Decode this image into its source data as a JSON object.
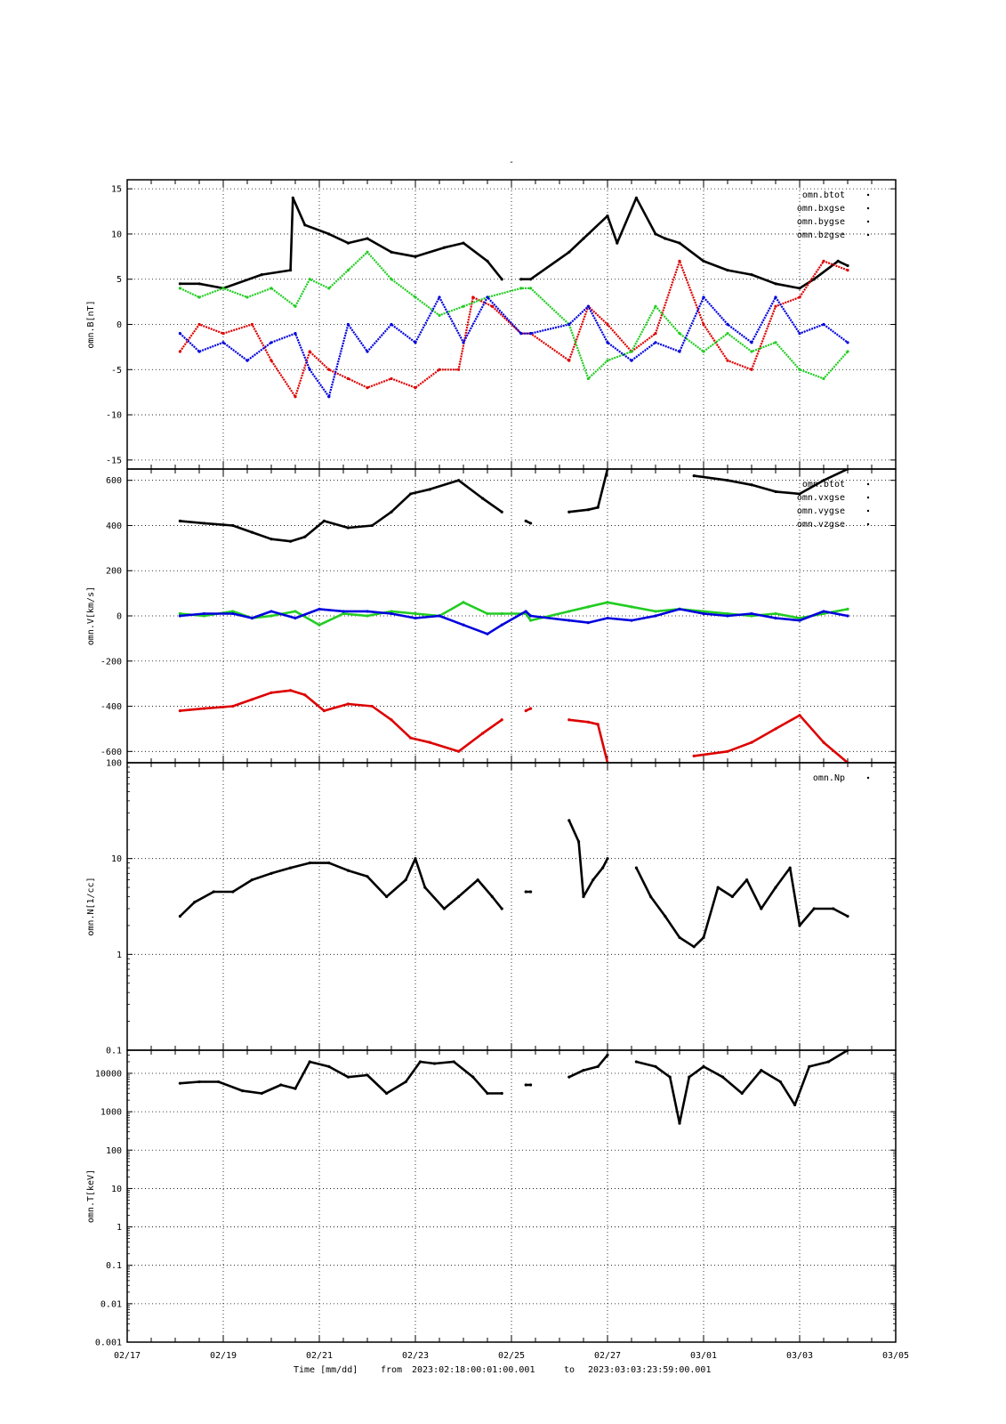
{
  "title": "-",
  "footer": {
    "time_label": "Time [mm/dd]",
    "from_label": "from",
    "from_value": "2023:02:18:00:01:00.001",
    "to_label": "to",
    "to_value": "2023:03:03:23:59:00.001"
  },
  "x_axis": {
    "range": [
      "02/17",
      "03/05"
    ],
    "tick_labels": [
      "02/17",
      "02/19",
      "02/21",
      "02/23",
      "02/25",
      "02/27",
      "03/01",
      "03/03",
      "03/05"
    ]
  },
  "colors": {
    "black": "#000000",
    "red": "#dd0000",
    "green": "#22cc22",
    "blue": "#0000dd"
  },
  "chart_data": [
    {
      "type": "scatter",
      "ylabel": "omn.B[nT]",
      "ylim": [
        -16,
        16
      ],
      "y_ticks": [
        15,
        10,
        5,
        0,
        -5,
        -10,
        -15
      ],
      "x_units": "days since 02/17",
      "legend": [
        "omn.btot",
        "omn.bxgse",
        "omn.bygse",
        "omn.bzgse"
      ],
      "series": [
        {
          "name": "omn.btot",
          "color": "#000000",
          "style": "line",
          "x": [
            1.1,
            1.5,
            2.0,
            2.8,
            3.4,
            3.45,
            3.7,
            4.2,
            4.6,
            5.0,
            5.5,
            6.0,
            6.6,
            7.0,
            7.5,
            7.8
          ],
          "y": [
            4.5,
            4.5,
            4.0,
            5.5,
            6.0,
            14.0,
            11.0,
            10.0,
            9.0,
            9.5,
            8.0,
            7.5,
            8.5,
            9.0,
            7.0,
            5.0
          ]
        },
        {
          "name": "omn.btot-b",
          "color": "#000000",
          "style": "line",
          "x": [
            8.2,
            8.4,
            9.2,
            9.5,
            10.0,
            10.2,
            10.6,
            11.0,
            11.2,
            11.5,
            12.0,
            12.5,
            13.0,
            13.5,
            14.0,
            14.3,
            14.8,
            15.0
          ],
          "y": [
            5.0,
            5.0,
            8.0,
            9.5,
            12.0,
            9.0,
            14.0,
            10.0,
            9.5,
            9.0,
            7.0,
            6.0,
            5.5,
            4.5,
            4.0,
            5.0,
            7.0,
            6.5
          ]
        },
        {
          "name": "omn.bxgse",
          "color": "#dd0000",
          "style": "scatter",
          "x": [
            1.1,
            1.5,
            2.0,
            2.6,
            3.0,
            3.5,
            3.8,
            4.2,
            4.6,
            5.0,
            5.5,
            6.0,
            6.5,
            6.9,
            7.2,
            7.6,
            8.2,
            8.4,
            9.2,
            9.6,
            10.0,
            10.5,
            11.0,
            11.5,
            12.0,
            12.5,
            13.0,
            13.5,
            14.0,
            14.5,
            15.0
          ],
          "y": [
            -3,
            0,
            -1,
            0,
            -4,
            -8,
            -3,
            -5,
            -6,
            -7,
            -6,
            -7,
            -5,
            -5,
            3,
            2,
            -1,
            -1,
            -4,
            2,
            0,
            -3,
            -1,
            7,
            0,
            -4,
            -5,
            2,
            3,
            7,
            6
          ]
        },
        {
          "name": "omn.bygse",
          "color": "#22cc22",
          "style": "scatter",
          "x": [
            1.1,
            1.5,
            2.0,
            2.5,
            3.0,
            3.5,
            3.8,
            4.2,
            4.6,
            5.0,
            5.5,
            6.0,
            6.5,
            7.0,
            7.5,
            8.2,
            8.4,
            9.2,
            9.6,
            10.0,
            10.5,
            11.0,
            11.5,
            12.0,
            12.5,
            13.0,
            13.5,
            14.0,
            14.5,
            15.0
          ],
          "y": [
            4,
            3,
            4,
            3,
            4,
            2,
            5,
            4,
            6,
            8,
            5,
            3,
            1,
            2,
            3,
            4,
            4,
            0,
            -6,
            -4,
            -3,
            2,
            -1,
            -3,
            -1,
            -3,
            -2,
            -5,
            -6,
            -3
          ]
        },
        {
          "name": "omn.bzgse",
          "color": "#0000dd",
          "style": "scatter",
          "x": [
            1.1,
            1.5,
            2.0,
            2.5,
            3.0,
            3.5,
            3.8,
            4.2,
            4.6,
            5.0,
            5.5,
            6.0,
            6.5,
            7.0,
            7.5,
            8.2,
            8.4,
            9.2,
            9.6,
            10.0,
            10.5,
            11.0,
            11.5,
            12.0,
            12.5,
            13.0,
            13.5,
            14.0,
            14.5,
            15.0
          ],
          "y": [
            -1,
            -3,
            -2,
            -4,
            -2,
            -1,
            -5,
            -8,
            0,
            -3,
            0,
            -2,
            3,
            -2,
            3,
            -1,
            -1,
            0,
            2,
            -2,
            -4,
            -2,
            -3,
            3,
            0,
            -2,
            3,
            -1,
            0,
            -2
          ]
        }
      ]
    },
    {
      "type": "scatter",
      "ylabel": "omn.V[km/s]",
      "ylim": [
        -650,
        650
      ],
      "y_ticks": [
        600,
        400,
        200,
        0,
        -200,
        -400,
        -600
      ],
      "x_units": "days since 02/17",
      "legend": [
        "omn.btot",
        "omn.vxgse",
        "omn.vygse",
        "omn.vzgse"
      ],
      "series": [
        {
          "name": "omn.btot",
          "color": "#000000",
          "style": "line",
          "x": [
            1.1,
            1.6,
            2.2,
            2.6,
            3.0,
            3.4,
            3.7,
            4.1,
            4.6,
            5.1,
            5.5,
            5.9,
            6.3,
            6.9,
            7.4,
            7.8
          ],
          "y": [
            420,
            410,
            400,
            370,
            340,
            330,
            350,
            420,
            390,
            400,
            460,
            540,
            560,
            600,
            520,
            460
          ]
        },
        {
          "name": "omn.btot-b",
          "color": "#000000",
          "style": "line",
          "x": [
            8.3,
            8.4
          ],
          "y": [
            420,
            410
          ]
        },
        {
          "name": "omn.btot-c",
          "color": "#000000",
          "style": "line",
          "x": [
            9.2,
            9.6,
            9.8,
            10.0
          ],
          "y": [
            460,
            470,
            480,
            650
          ]
        },
        {
          "name": "omn.btot-d",
          "color": "#000000",
          "style": "line",
          "x": [
            11.8,
            12.5,
            13.0,
            13.5,
            14.0,
            14.5,
            15.0
          ],
          "y": [
            620,
            600,
            580,
            550,
            540,
            600,
            650
          ]
        },
        {
          "name": "omn.vxgse",
          "color": "#dd0000",
          "style": "line",
          "x": [
            1.1,
            1.6,
            2.2,
            2.6,
            3.0,
            3.4,
            3.7,
            4.1,
            4.6,
            5.1,
            5.5,
            5.9,
            6.3,
            6.9,
            7.4,
            7.8
          ],
          "y": [
            -420,
            -410,
            -400,
            -370,
            -340,
            -330,
            -350,
            -420,
            -390,
            -400,
            -460,
            -540,
            -560,
            -600,
            -520,
            -460
          ]
        },
        {
          "name": "omn.vxgse-b",
          "color": "#dd0000",
          "style": "line",
          "x": [
            8.3,
            8.4
          ],
          "y": [
            -420,
            -410
          ]
        },
        {
          "name": "omn.vxgse-c",
          "color": "#dd0000",
          "style": "line",
          "x": [
            9.2,
            9.6,
            9.8,
            10.0
          ],
          "y": [
            -460,
            -470,
            -480,
            -650
          ]
        },
        {
          "name": "omn.vxgse-d",
          "color": "#dd0000",
          "style": "line",
          "x": [
            11.8,
            12.5,
            13.0,
            13.5,
            14.0,
            14.5,
            15.0
          ],
          "y": [
            -620,
            -600,
            -560,
            -500,
            -440,
            -560,
            -650
          ]
        },
        {
          "name": "omn.vygse",
          "color": "#22cc22",
          "style": "line",
          "x": [
            1.1,
            1.6,
            2.2,
            2.6,
            3.0,
            3.5,
            4.0,
            4.5,
            5.0,
            5.5,
            6.0,
            6.5,
            7.0,
            7.5,
            7.8,
            8.3,
            8.4,
            9.2,
            9.6,
            10.0,
            10.5,
            11.0,
            11.5,
            12.0,
            12.5,
            13.0,
            13.5,
            14.0,
            14.5,
            15.0
          ],
          "y": [
            10,
            0,
            20,
            -10,
            0,
            20,
            -40,
            10,
            0,
            20,
            10,
            0,
            60,
            10,
            10,
            10,
            -20,
            20,
            40,
            60,
            40,
            20,
            30,
            20,
            10,
            0,
            10,
            -10,
            10,
            30
          ]
        },
        {
          "name": "omn.vzgse",
          "color": "#0000dd",
          "style": "line",
          "x": [
            1.1,
            1.6,
            2.2,
            2.6,
            3.0,
            3.5,
            4.0,
            4.5,
            5.0,
            5.5,
            6.0,
            6.5,
            7.0,
            7.5,
            7.8,
            8.3,
            8.4,
            9.2,
            9.6,
            10.0,
            10.5,
            11.0,
            11.5,
            12.0,
            12.5,
            13.0,
            13.5,
            14.0,
            14.5,
            15.0
          ],
          "y": [
            0,
            10,
            10,
            -10,
            20,
            -10,
            30,
            20,
            20,
            10,
            -10,
            0,
            -40,
            -80,
            -40,
            20,
            0,
            -20,
            -30,
            -10,
            -20,
            0,
            30,
            10,
            0,
            10,
            -10,
            -20,
            20,
            0
          ]
        }
      ]
    },
    {
      "type": "scatter",
      "ylabel": "omn.N[1/cc]",
      "yscale": "log",
      "ylim": [
        0.1,
        100
      ],
      "y_ticks": [
        100,
        10,
        1,
        0.1
      ],
      "y_tick_labels": [
        "100",
        "10",
        "1",
        "0.1"
      ],
      "x_units": "days since 02/17",
      "legend": [
        "omn.Np"
      ],
      "series": [
        {
          "name": "omn.Np",
          "color": "#000000",
          "style": "line",
          "x": [
            1.1,
            1.4,
            1.8,
            2.2,
            2.6,
            3.0,
            3.4,
            3.8,
            4.2,
            4.6,
            5.0,
            5.4,
            5.8,
            6.0,
            6.2,
            6.6,
            6.9,
            7.3,
            7.6,
            7.8
          ],
          "y": [
            2.5,
            3.5,
            4.5,
            4.5,
            6.0,
            7.0,
            8.0,
            9.0,
            9.0,
            7.5,
            6.5,
            4.0,
            6.0,
            10.0,
            5.0,
            3.0,
            4.0,
            6.0,
            4.0,
            3.0
          ]
        },
        {
          "name": "omn.Np-b",
          "color": "#000000",
          "style": "line",
          "x": [
            8.3,
            8.4
          ],
          "y": [
            4.5,
            4.5
          ]
        },
        {
          "name": "omn.Np-c",
          "color": "#000000",
          "style": "line",
          "x": [
            9.2,
            9.4,
            9.5,
            9.7,
            9.9,
            10.0
          ],
          "y": [
            25.0,
            15.0,
            4.0,
            6.0,
            8.0,
            10.0
          ]
        },
        {
          "name": "omn.Np-d",
          "color": "#000000",
          "style": "line",
          "x": [
            10.6,
            10.9,
            11.2,
            11.5,
            11.8,
            12.0,
            12.3,
            12.6,
            12.9,
            13.2,
            13.5,
            13.8,
            14.0,
            14.3,
            14.7,
            15.0
          ],
          "y": [
            8.0,
            4.0,
            2.5,
            1.5,
            1.2,
            1.5,
            5.0,
            4.0,
            6.0,
            3.0,
            5.0,
            8.0,
            2.0,
            3.0,
            3.0,
            2.5
          ]
        }
      ]
    },
    {
      "type": "scatter",
      "ylabel": "omn.T[keV]",
      "yscale": "log",
      "ylim": [
        0.001,
        40000
      ],
      "y_ticks": [
        10000,
        1000,
        100,
        10,
        1,
        0.1,
        0.01,
        0.001
      ],
      "y_tick_labels": [
        "10000",
        "1000",
        "100",
        "10",
        "1",
        "0.1",
        "0.01",
        "0.001"
      ],
      "x_units": "days since 02/17",
      "legend": [],
      "series": [
        {
          "name": "omn.T",
          "color": "#000000",
          "style": "line",
          "x": [
            1.1,
            1.5,
            1.9,
            2.4,
            2.8,
            3.2,
            3.5,
            3.8,
            4.2,
            4.6,
            5.0,
            5.4,
            5.8,
            6.1,
            6.4,
            6.8,
            7.2,
            7.5,
            7.8
          ],
          "y": [
            5500,
            6000,
            6000,
            3500,
            3000,
            5000,
            4000,
            20000,
            15000,
            8000,
            9000,
            3000,
            6000,
            20000,
            18000,
            20000,
            8000,
            3000,
            3000
          ]
        },
        {
          "name": "omn.T-b",
          "color": "#000000",
          "style": "line",
          "x": [
            8.3,
            8.4
          ],
          "y": [
            5000,
            5000
          ]
        },
        {
          "name": "omn.T-c",
          "color": "#000000",
          "style": "line",
          "x": [
            9.2,
            9.5,
            9.8,
            10.0
          ],
          "y": [
            8000,
            12000,
            15000,
            30000
          ]
        },
        {
          "name": "omn.T-d",
          "color": "#000000",
          "style": "line",
          "x": [
            10.6,
            11.0,
            11.3,
            11.5,
            11.7,
            12.0,
            12.4,
            12.8,
            13.2,
            13.6,
            13.9,
            14.2,
            14.6,
            15.0
          ],
          "y": [
            20000,
            15000,
            8000,
            500,
            8000,
            15000,
            8000,
            3000,
            12000,
            6000,
            1500,
            15000,
            20000,
            40000
          ]
        }
      ]
    }
  ]
}
